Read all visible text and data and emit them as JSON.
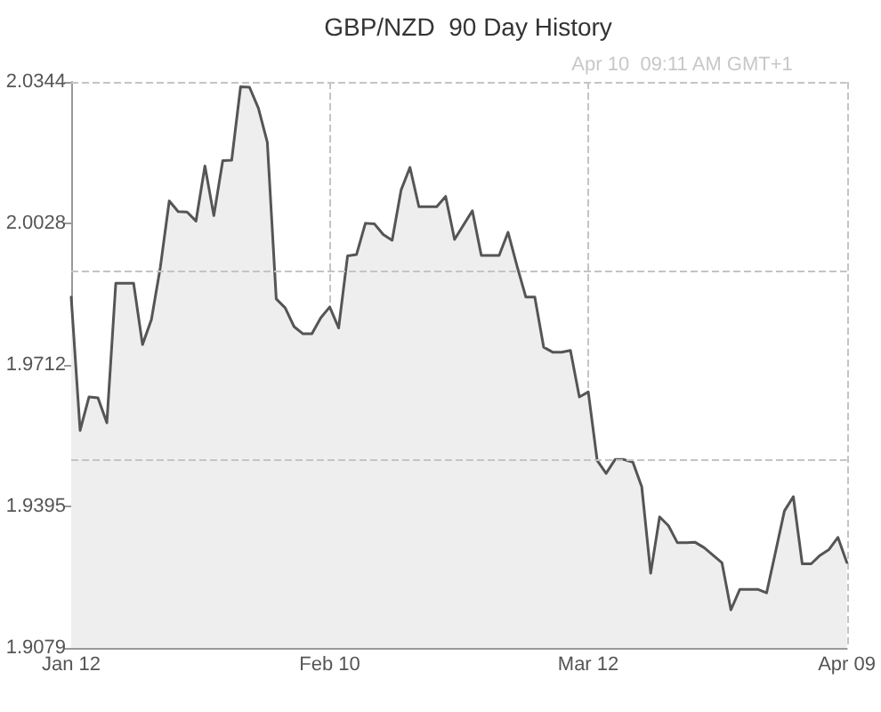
{
  "chart_data": {
    "type": "area",
    "title": "GBP/NZD  90 Day History",
    "annotations": [
      "Apr 10  09:11 AM GMT+1"
    ],
    "categories": [
      "Jan 12",
      null,
      null,
      null,
      null,
      null,
      null,
      null,
      null,
      null,
      null,
      null,
      null,
      null,
      null,
      null,
      null,
      null,
      null,
      null,
      null,
      null,
      null,
      null,
      null,
      null,
      null,
      null,
      null,
      "Feb 10",
      null,
      null,
      null,
      null,
      null,
      null,
      null,
      null,
      null,
      null,
      null,
      null,
      null,
      null,
      null,
      null,
      null,
      null,
      null,
      null,
      null,
      null,
      null,
      null,
      null,
      null,
      null,
      null,
      "Mar 12",
      null,
      null,
      null,
      null,
      null,
      null,
      null,
      null,
      null,
      null,
      null,
      null,
      null,
      null,
      null,
      null,
      null,
      null,
      null,
      null,
      null,
      null,
      null,
      null,
      null,
      null,
      null,
      null,
      "Apr 09"
    ],
    "values": [
      1.9863,
      1.9565,
      1.964,
      1.9638,
      1.9582,
      1.9894,
      1.9894,
      1.9894,
      1.9757,
      1.9813,
      1.993,
      2.0078,
      2.0054,
      2.0053,
      2.0033,
      2.0156,
      2.0045,
      2.0168,
      2.0169,
      2.0333,
      2.0332,
      2.0285,
      2.0209,
      1.9859,
      1.9839,
      1.9797,
      1.9781,
      1.9781,
      1.9817,
      1.9841,
      1.9794,
      1.9955,
      1.9958,
      2.0028,
      2.0027,
      2.0003,
      1.999,
      2.0102,
      2.0153,
      2.0065,
      2.0065,
      2.0065,
      2.0088,
      1.9992,
      2.0024,
      2.0056,
      1.9956,
      1.9956,
      1.9956,
      2.0008,
      1.9933,
      1.9863,
      1.9863,
      1.9751,
      1.974,
      1.974,
      1.9744,
      1.964,
      1.9651,
      1.9498,
      1.9469,
      1.95,
      1.95,
      1.9494,
      1.9439,
      1.9246,
      1.9372,
      1.9352,
      1.9314,
      1.9314,
      1.9315,
      1.9303,
      1.9286,
      1.9269,
      1.9164,
      1.921,
      1.921,
      1.921,
      1.9202,
      1.9293,
      1.9385,
      1.9417,
      1.9267,
      1.9267,
      1.9286,
      1.9299,
      1.9326,
      1.927
    ],
    "color": "#555555",
    "ylim": [
      1.9079,
      2.0344
    ],
    "yticks": [
      1.9079,
      1.9395,
      1.9712,
      2.0028,
      2.0344
    ],
    "grid": "x",
    "ref_lines": [
      {
        "axis": "y",
        "value": 1.992,
        "color": "#c4c4c4",
        "line_style": "dashed"
      },
      {
        "axis": "y",
        "value": 1.95,
        "color": "#c4c4c4",
        "line_style": "dashed"
      }
    ]
  }
}
